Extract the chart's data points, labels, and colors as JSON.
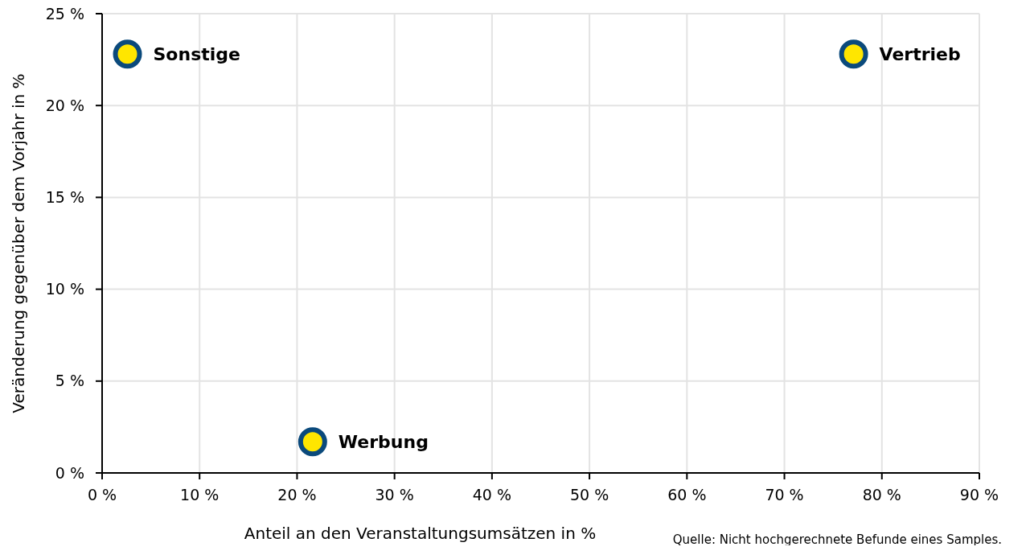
{
  "chart_data": {
    "type": "scatter",
    "xlabel": "Anteil an den Veranstaltungsumsätzen in %",
    "ylabel": "Veränderung gegenüber dem Vorjahr in %",
    "xlim": [
      0,
      90
    ],
    "ylim": [
      0,
      25
    ],
    "xticks": [
      {
        "value": 0,
        "label": "0 %"
      },
      {
        "value": 10,
        "label": "10 %"
      },
      {
        "value": 20,
        "label": "20 %"
      },
      {
        "value": 30,
        "label": "30 %"
      },
      {
        "value": 40,
        "label": "40 %"
      },
      {
        "value": 50,
        "label": "50 %"
      },
      {
        "value": 60,
        "label": "60 %"
      },
      {
        "value": 70,
        "label": "70 %"
      },
      {
        "value": 80,
        "label": "80 %"
      },
      {
        "value": 90,
        "label": "90 %"
      }
    ],
    "yticks": [
      {
        "value": 0,
        "label": "0 %"
      },
      {
        "value": 5,
        "label": "5 %"
      },
      {
        "value": 10,
        "label": "10 %"
      },
      {
        "value": 15,
        "label": "15 %"
      },
      {
        "value": 20,
        "label": "20 %"
      },
      {
        "value": 25,
        "label": "25 %"
      }
    ],
    "grid": true,
    "marker": "circle",
    "series": [
      {
        "name": "Sonstige",
        "color": "#ffe600",
        "x": [
          2.6
        ],
        "values": [
          22.8
        ]
      },
      {
        "name": "Werbung",
        "color": "#ffe600",
        "x": [
          21.6
        ],
        "values": [
          1.7
        ]
      },
      {
        "name": "Vertrieb",
        "color": "#ffe600",
        "x": [
          77.1
        ],
        "values": [
          22.8
        ]
      }
    ],
    "annotations": [
      "Quelle: Nicht hochgerechnete Befunde eines Samples."
    ]
  }
}
